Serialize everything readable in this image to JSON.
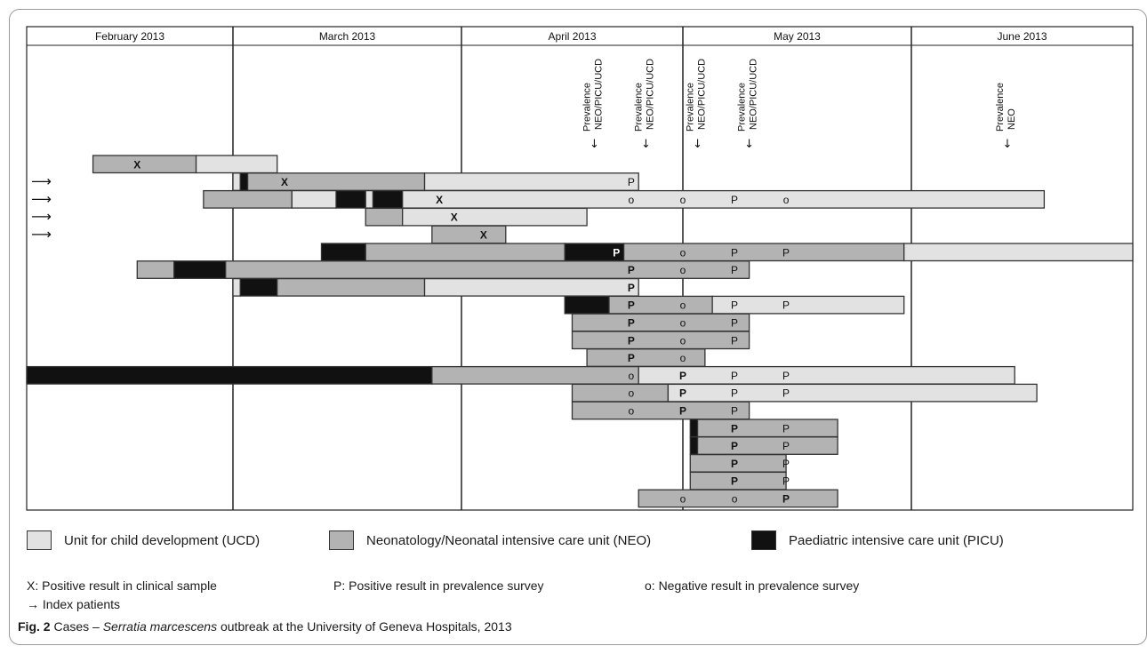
{
  "colors": {
    "UCD": "#e2e2e2",
    "NEO": "#b3b3b3",
    "PICU": "#111111",
    "border": "#333333"
  },
  "chart_data": {
    "type": "gantt",
    "months": [
      "February 2013",
      "March 2013",
      "April 2013",
      "May 2013",
      "June 2013"
    ],
    "prevalence_surveys": [
      {
        "label": "Prevalence NEO/PICU/UCD",
        "day": 77
      },
      {
        "label": "Prevalence NEO/PICU/UCD",
        "day": 84
      },
      {
        "label": "Prevalence NEO/PICU/UCD",
        "day": 91
      },
      {
        "label": "Prevalence NEO/PICU/UCD",
        "day": 98
      },
      {
        "label": "Prevalence NEO",
        "day": 133
      }
    ],
    "patients": [
      {
        "index": false,
        "segments": [
          {
            "unit": "NEO",
            "start": 9,
            "end": 23
          },
          {
            "unit": "UCD",
            "start": 23,
            "end": 34
          }
        ],
        "marks": [
          {
            "t": "X",
            "day": 15,
            "bold": true
          }
        ]
      },
      {
        "index": true,
        "segments": [
          {
            "unit": "UCD",
            "start": 28,
            "end": 29
          },
          {
            "unit": "PICU",
            "start": 29,
            "end": 30
          },
          {
            "unit": "NEO",
            "start": 30,
            "end": 54
          },
          {
            "unit": "UCD",
            "start": 54,
            "end": 83
          }
        ],
        "marks": [
          {
            "t": "X",
            "day": 35,
            "bold": true
          },
          {
            "t": "P",
            "day": 82,
            "bold": false
          }
        ]
      },
      {
        "index": true,
        "segments": [
          {
            "unit": "NEO",
            "start": 24,
            "end": 36
          },
          {
            "unit": "UCD",
            "start": 36,
            "end": 42
          },
          {
            "unit": "PICU",
            "start": 42,
            "end": 46
          },
          {
            "unit": "UCD",
            "start": 46,
            "end": 47
          },
          {
            "unit": "PICU",
            "start": 47,
            "end": 51
          },
          {
            "unit": "UCD",
            "start": 51,
            "end": 138
          }
        ],
        "marks": [
          {
            "t": "X",
            "day": 56,
            "bold": true
          },
          {
            "t": "o",
            "day": 82,
            "bold": false
          },
          {
            "t": "o",
            "day": 89,
            "bold": false
          },
          {
            "t": "P",
            "day": 96,
            "bold": false
          },
          {
            "t": "o",
            "day": 103,
            "bold": false
          }
        ]
      },
      {
        "index": true,
        "segments": [
          {
            "unit": "NEO",
            "start": 46,
            "end": 51
          },
          {
            "unit": "UCD",
            "start": 51,
            "end": 76
          }
        ],
        "marks": [
          {
            "t": "X",
            "day": 58,
            "bold": true
          }
        ]
      },
      {
        "index": true,
        "segments": [
          {
            "unit": "NEO",
            "start": 55,
            "end": 65
          }
        ],
        "marks": [
          {
            "t": "X",
            "day": 62,
            "bold": true
          }
        ]
      },
      {
        "index": false,
        "segments": [
          {
            "unit": "PICU",
            "start": 40,
            "end": 46
          },
          {
            "unit": "NEO",
            "start": 46,
            "end": 73
          },
          {
            "unit": "PICU",
            "start": 73,
            "end": 81
          },
          {
            "unit": "NEO",
            "start": 81,
            "end": 119
          },
          {
            "unit": "UCD",
            "start": 119,
            "end": 150
          }
        ],
        "marks": [
          {
            "t": "P",
            "day": 80,
            "bold": true
          },
          {
            "t": "o",
            "day": 89,
            "bold": false
          },
          {
            "t": "P",
            "day": 96,
            "bold": false
          },
          {
            "t": "P",
            "day": 103,
            "bold": false
          }
        ]
      },
      {
        "index": false,
        "segments": [
          {
            "unit": "NEO",
            "start": 15,
            "end": 20
          },
          {
            "unit": "PICU",
            "start": 20,
            "end": 27
          },
          {
            "unit": "NEO",
            "start": 27,
            "end": 98
          }
        ],
        "marks": [
          {
            "t": "P",
            "day": 82,
            "bold": true
          },
          {
            "t": "o",
            "day": 89,
            "bold": false
          },
          {
            "t": "P",
            "day": 96,
            "bold": false
          }
        ]
      },
      {
        "index": false,
        "segments": [
          {
            "unit": "UCD",
            "start": 28,
            "end": 29
          },
          {
            "unit": "PICU",
            "start": 29,
            "end": 34
          },
          {
            "unit": "NEO",
            "start": 34,
            "end": 54
          },
          {
            "unit": "UCD",
            "start": 54,
            "end": 83
          }
        ],
        "marks": [
          {
            "t": "P",
            "day": 82,
            "bold": true
          }
        ]
      },
      {
        "index": false,
        "segments": [
          {
            "unit": "PICU",
            "start": 73,
            "end": 79
          },
          {
            "unit": "NEO",
            "start": 79,
            "end": 93
          },
          {
            "unit": "UCD",
            "start": 93,
            "end": 119
          }
        ],
        "marks": [
          {
            "t": "P",
            "day": 82,
            "bold": true
          },
          {
            "t": "o",
            "day": 89,
            "bold": false
          },
          {
            "t": "P",
            "day": 96,
            "bold": false
          },
          {
            "t": "P",
            "day": 103,
            "bold": false
          }
        ]
      },
      {
        "index": false,
        "segments": [
          {
            "unit": "NEO",
            "start": 74,
            "end": 98
          }
        ],
        "marks": [
          {
            "t": "P",
            "day": 82,
            "bold": true
          },
          {
            "t": "o",
            "day": 89,
            "bold": false
          },
          {
            "t": "P",
            "day": 96,
            "bold": false
          }
        ]
      },
      {
        "index": false,
        "segments": [
          {
            "unit": "NEO",
            "start": 74,
            "end": 98
          }
        ],
        "marks": [
          {
            "t": "P",
            "day": 82,
            "bold": true
          },
          {
            "t": "o",
            "day": 89,
            "bold": false
          },
          {
            "t": "P",
            "day": 96,
            "bold": false
          }
        ]
      },
      {
        "index": false,
        "segments": [
          {
            "unit": "NEO",
            "start": 76,
            "end": 92
          }
        ],
        "marks": [
          {
            "t": "P",
            "day": 82,
            "bold": true
          },
          {
            "t": "o",
            "day": 89,
            "bold": false
          }
        ]
      },
      {
        "index": false,
        "segments": [
          {
            "unit": "PICU",
            "start": 0,
            "end": 55
          },
          {
            "unit": "NEO",
            "start": 55,
            "end": 83
          },
          {
            "unit": "UCD",
            "start": 83,
            "end": 134
          }
        ],
        "marks": [
          {
            "t": "o",
            "day": 82,
            "bold": false
          },
          {
            "t": "P",
            "day": 89,
            "bold": true
          },
          {
            "t": "P",
            "day": 96,
            "bold": false
          },
          {
            "t": "P",
            "day": 103,
            "bold": false
          }
        ]
      },
      {
        "index": false,
        "segments": [
          {
            "unit": "NEO",
            "start": 74,
            "end": 87
          },
          {
            "unit": "UCD",
            "start": 87,
            "end": 137
          }
        ],
        "marks": [
          {
            "t": "o",
            "day": 82,
            "bold": false
          },
          {
            "t": "P",
            "day": 89,
            "bold": true
          },
          {
            "t": "P",
            "day": 96,
            "bold": false
          },
          {
            "t": "P",
            "day": 103,
            "bold": false
          }
        ]
      },
      {
        "index": false,
        "segments": [
          {
            "unit": "NEO",
            "start": 74,
            "end": 98
          }
        ],
        "marks": [
          {
            "t": "o",
            "day": 82,
            "bold": false
          },
          {
            "t": "P",
            "day": 89,
            "bold": true
          },
          {
            "t": "P",
            "day": 96,
            "bold": false
          }
        ]
      },
      {
        "index": false,
        "segments": [
          {
            "unit": "PICU",
            "start": 90,
            "end": 91
          },
          {
            "unit": "NEO",
            "start": 91,
            "end": 110
          }
        ],
        "marks": [
          {
            "t": "P",
            "day": 96,
            "bold": true
          },
          {
            "t": "P",
            "day": 103,
            "bold": false
          }
        ]
      },
      {
        "index": false,
        "segments": [
          {
            "unit": "PICU",
            "start": 90,
            "end": 91
          },
          {
            "unit": "NEO",
            "start": 91,
            "end": 110
          }
        ],
        "marks": [
          {
            "t": "P",
            "day": 96,
            "bold": true
          },
          {
            "t": "P",
            "day": 103,
            "bold": false
          }
        ]
      },
      {
        "index": false,
        "segments": [
          {
            "unit": "NEO",
            "start": 90,
            "end": 103
          }
        ],
        "marks": [
          {
            "t": "P",
            "day": 96,
            "bold": true
          },
          {
            "t": "P",
            "day": 103,
            "bold": false
          }
        ]
      },
      {
        "index": false,
        "segments": [
          {
            "unit": "NEO",
            "start": 90,
            "end": 103
          }
        ],
        "marks": [
          {
            "t": "P",
            "day": 96,
            "bold": true
          },
          {
            "t": "P",
            "day": 103,
            "bold": false
          }
        ]
      },
      {
        "index": false,
        "segments": [
          {
            "unit": "NEO",
            "start": 83,
            "end": 110
          }
        ],
        "marks": [
          {
            "t": "o",
            "day": 89,
            "bold": false
          },
          {
            "t": "o",
            "day": 96,
            "bold": false
          },
          {
            "t": "P",
            "day": 103,
            "bold": true
          }
        ]
      }
    ]
  },
  "legend": {
    "ucd": "Unit for child development (UCD)",
    "neo": "Neonatology/Neonatal intensive care unit (NEO)",
    "picu": "Paediatric intensive care unit (PICU)"
  },
  "keys": {
    "x": "X: Positive result in clinical sample",
    "p": "P: Positive result in prevalence survey",
    "o": "o: Negative result in prevalence survey",
    "index": "→ Index patients"
  },
  "caption": {
    "fig": "Fig. 2",
    "pre": " Cases – ",
    "species": "Serratia marcescens",
    "post": " outbreak at the University of Geneva Hospitals, 2013"
  }
}
